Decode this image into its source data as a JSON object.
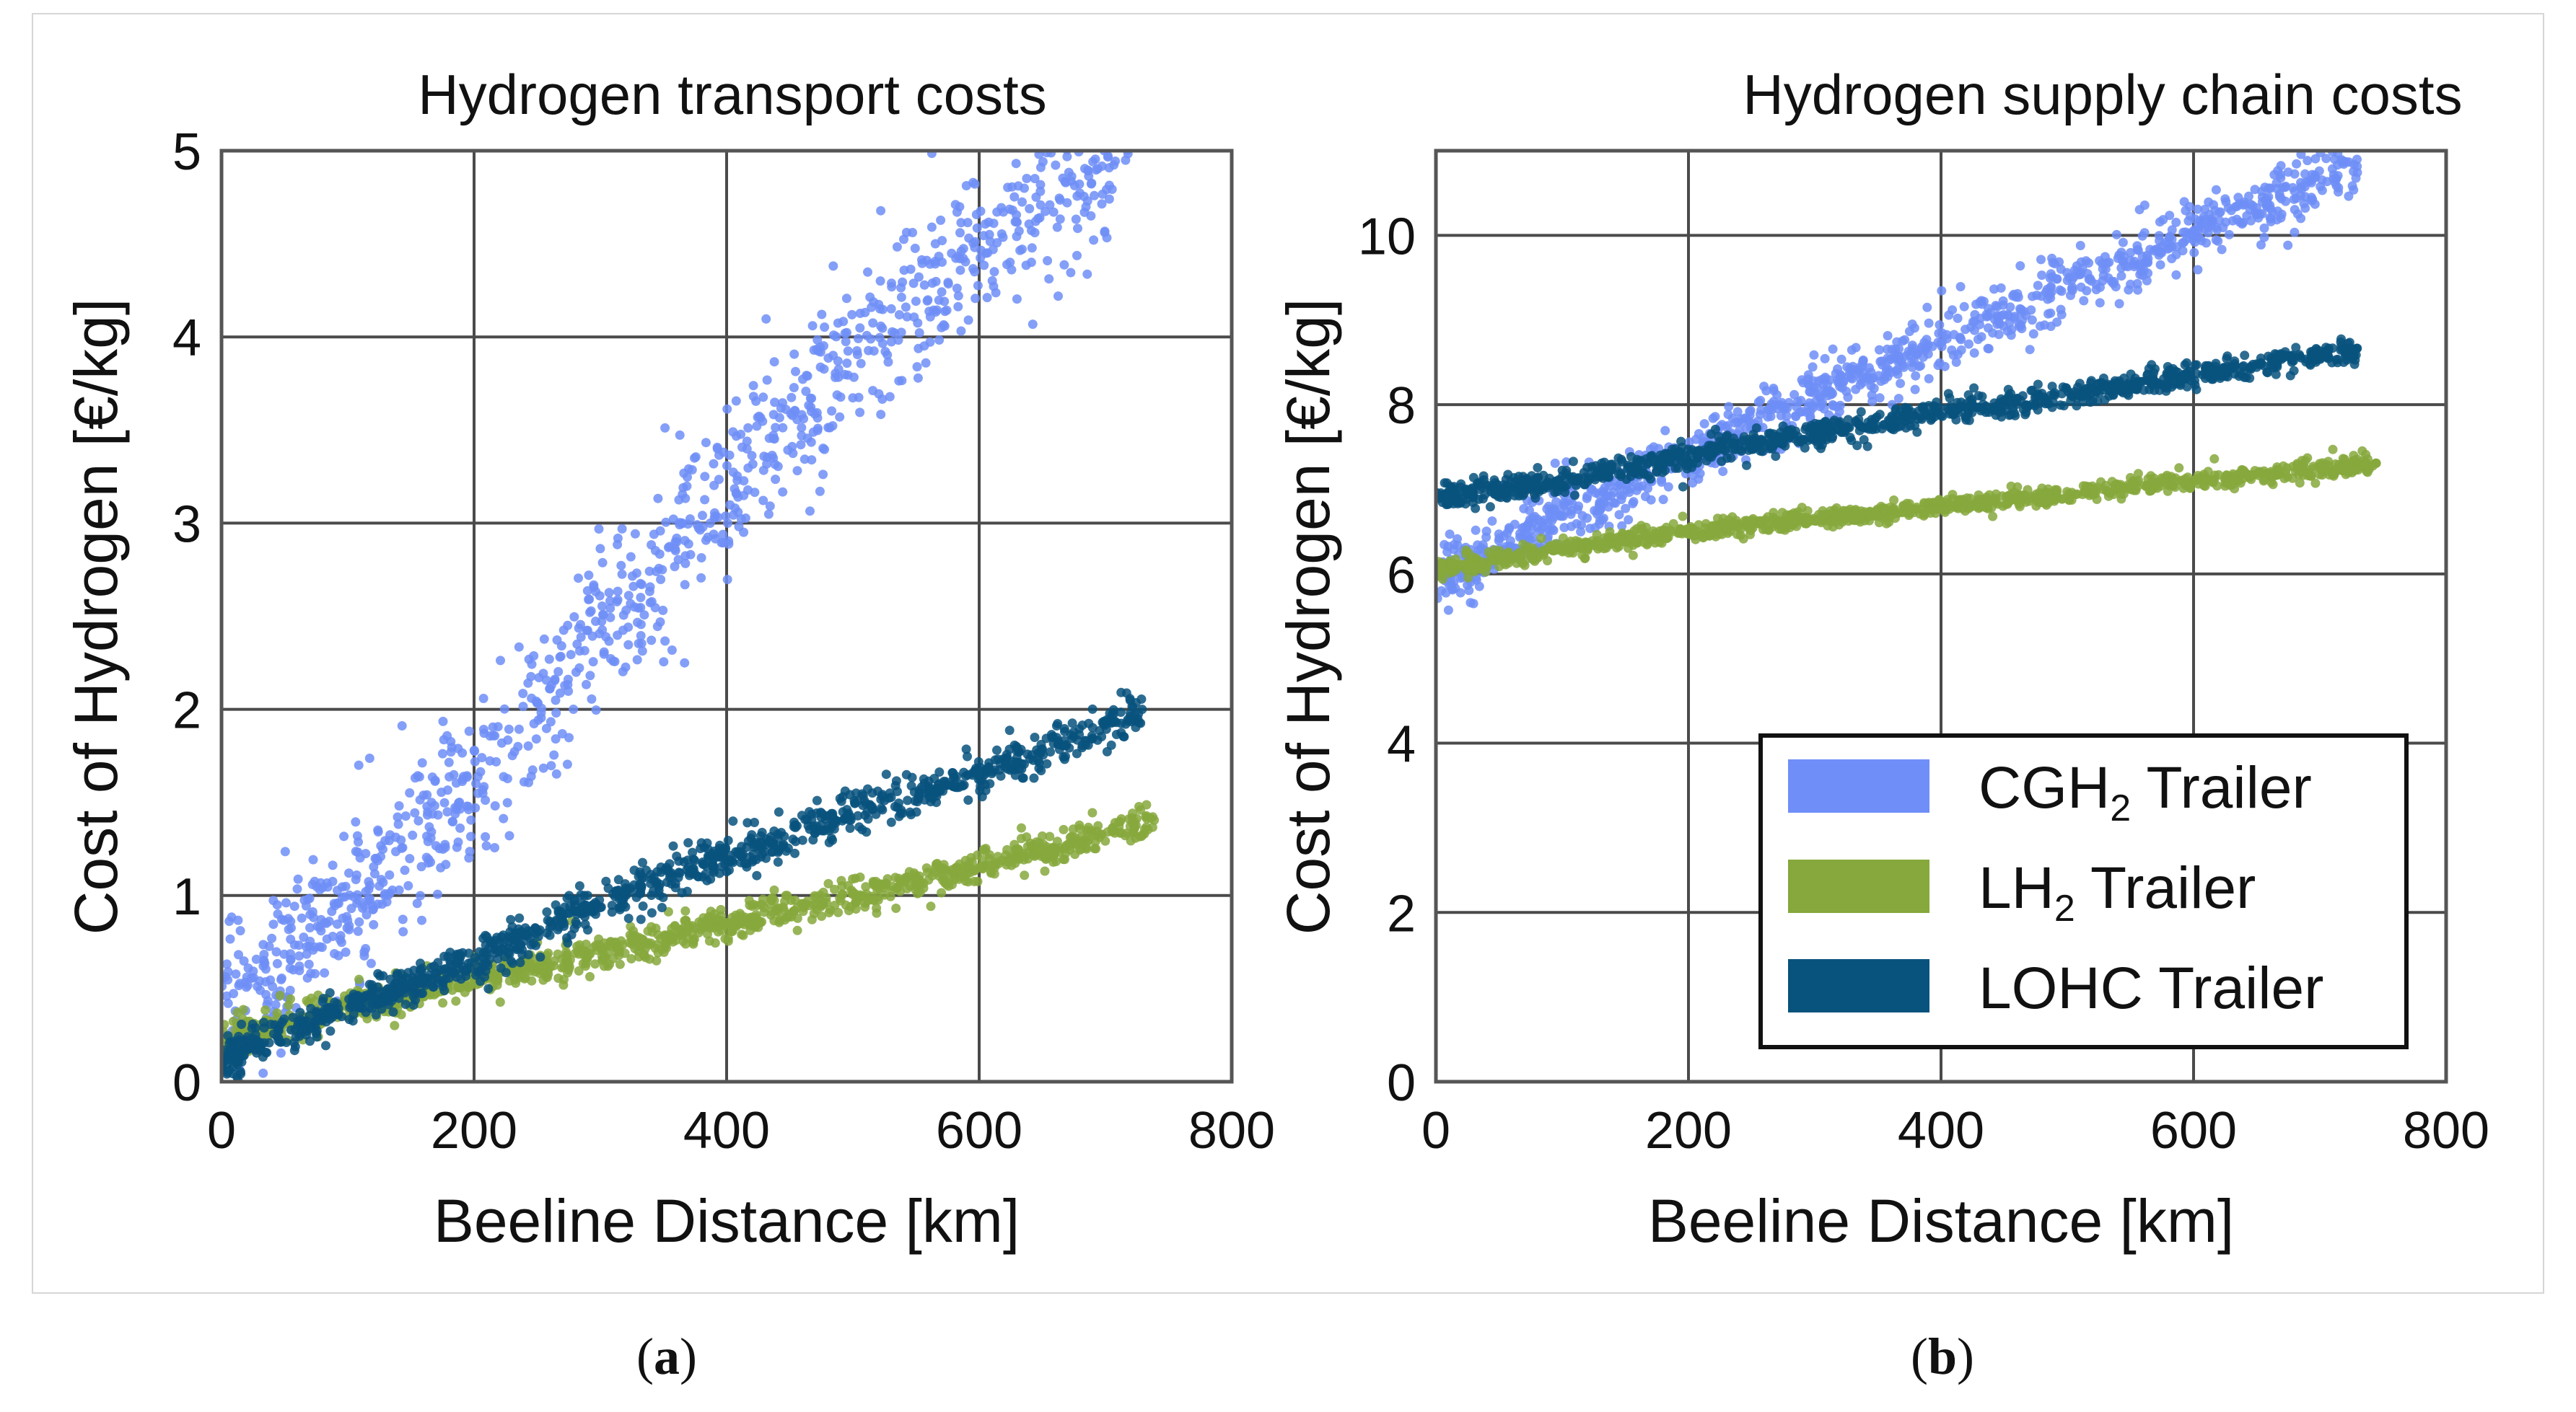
{
  "chart_data": [
    {
      "type": "scatter",
      "panel": "a",
      "title": "Hydrogen transport costs",
      "xlabel": "Beeline Distance [km]",
      "ylabel": "Cost of Hydrogen [€/kg]",
      "xlim": [
        0,
        800
      ],
      "ylim": [
        0,
        5
      ],
      "xticks": [
        "0",
        "200",
        "400",
        "600",
        "800"
      ],
      "yticks": [
        "0",
        "1",
        "2",
        "3",
        "4",
        "5"
      ],
      "grid": true,
      "series": [
        {
          "name": "CGH2 Trailer",
          "color": "#6f8ef7",
          "x_max": 720,
          "trend": [
            [
              0,
              0.35
            ],
            [
              100,
              0.95
            ],
            [
              200,
              1.6
            ],
            [
              300,
              2.4
            ],
            [
              400,
              3.2
            ],
            [
              500,
              3.9
            ],
            [
              600,
              4.5
            ],
            [
              700,
              5.0
            ]
          ],
          "spread": 0.25
        },
        {
          "name": "LH2 Trailer",
          "color": "#86a83c",
          "x_max": 740,
          "trend": [
            [
              0,
              0.2
            ],
            [
              100,
              0.4
            ],
            [
              200,
              0.55
            ],
            [
              300,
              0.7
            ],
            [
              400,
              0.85
            ],
            [
              500,
              1.0
            ],
            [
              600,
              1.15
            ],
            [
              740,
              1.4
            ]
          ],
          "spread": 0.05
        },
        {
          "name": "LOHC Trailer",
          "color": "#08527e",
          "x_max": 730,
          "trend": [
            [
              0,
              0.12
            ],
            [
              100,
              0.4
            ],
            [
              200,
              0.65
            ],
            [
              300,
              0.95
            ],
            [
              400,
              1.2
            ],
            [
              500,
              1.45
            ],
            [
              600,
              1.65
            ],
            [
              730,
              2.0
            ]
          ],
          "spread": 0.06
        }
      ]
    },
    {
      "type": "scatter",
      "panel": "b",
      "title": "Hydrogen supply chain costs",
      "xlabel": "Beeline Distance [km]",
      "ylabel": "Cost of Hydrogen [€/kg]",
      "xlim": [
        0,
        800
      ],
      "ylim": [
        0,
        11
      ],
      "xticks": [
        "0",
        "200",
        "400",
        "600",
        "800"
      ],
      "yticks": [
        "0",
        "2",
        "4",
        "6",
        "8",
        "10"
      ],
      "grid": true,
      "legend_position": "lower-right",
      "series": [
        {
          "name": "CGH2 Trailer",
          "color": "#6f8ef7",
          "x_max": 730,
          "trend": [
            [
              0,
              5.9
            ],
            [
              100,
              6.75
            ],
            [
              200,
              7.4
            ],
            [
              300,
              8.1
            ],
            [
              400,
              8.75
            ],
            [
              500,
              9.4
            ],
            [
              600,
              10.0
            ],
            [
              730,
              10.8
            ]
          ],
          "spread": 0.2
        },
        {
          "name": "LH2 Trailer",
          "color": "#86a83c",
          "x_max": 745,
          "trend": [
            [
              0,
              6.05
            ],
            [
              100,
              6.3
            ],
            [
              200,
              6.5
            ],
            [
              300,
              6.65
            ],
            [
              400,
              6.8
            ],
            [
              500,
              6.95
            ],
            [
              600,
              7.1
            ],
            [
              745,
              7.3
            ]
          ],
          "spread": 0.06
        },
        {
          "name": "LOHC Trailer",
          "color": "#08527e",
          "x_max": 730,
          "trend": [
            [
              0,
              6.9
            ],
            [
              100,
              7.1
            ],
            [
              200,
              7.4
            ],
            [
              300,
              7.65
            ],
            [
              400,
              7.9
            ],
            [
              500,
              8.1
            ],
            [
              600,
              8.35
            ],
            [
              730,
              8.65
            ]
          ],
          "spread": 0.08
        }
      ]
    }
  ],
  "legend": {
    "items": [
      {
        "label_pre": "CGH",
        "label_sub": "2",
        "label_post": " Trailer",
        "color": "#6f8ef7"
      },
      {
        "label_pre": "LH",
        "label_sub": "2",
        "label_post": " Trailer",
        "color": "#86a83c"
      },
      {
        "label_pre": "LOHC Trailer",
        "label_sub": "",
        "label_post": "",
        "color": "#08527e"
      }
    ]
  },
  "captions": {
    "a": "a",
    "b": "b"
  }
}
